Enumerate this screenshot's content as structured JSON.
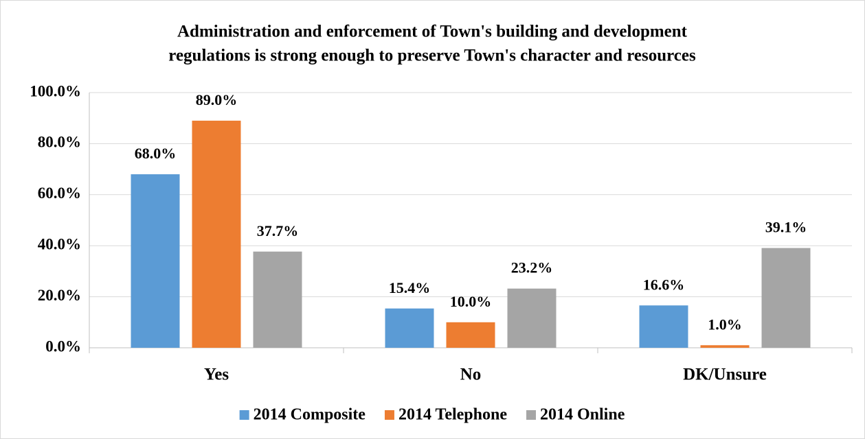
{
  "chart_data": {
    "type": "bar",
    "title": [
      "Administration and enforcement of Town's building and development",
      "regulations is strong enough to preserve Town's character and resources"
    ],
    "categories": [
      "Yes",
      "No",
      "DK/Unsure"
    ],
    "series": [
      {
        "name": "2014 Composite",
        "color": "#5b9bd5",
        "values": [
          68.0,
          15.4,
          16.6
        ],
        "value_labels": [
          "68.0%",
          "15.4%",
          "16.6%"
        ]
      },
      {
        "name": "2014 Telephone",
        "color": "#ed7d31",
        "values": [
          89.0,
          10.0,
          1.0
        ],
        "value_labels": [
          "89.0%",
          "10.0%",
          "1.0%"
        ]
      },
      {
        "name": "2014 Online",
        "color": "#a5a5a5",
        "values": [
          37.7,
          23.2,
          39.1
        ],
        "value_labels": [
          "37.7%",
          "23.2%",
          "39.1%"
        ]
      }
    ],
    "ylim": [
      0,
      100
    ],
    "yticks": [
      {
        "value": 0,
        "label": "0.0%"
      },
      {
        "value": 20,
        "label": "20.0%"
      },
      {
        "value": 40,
        "label": "40.0%"
      },
      {
        "value": 60,
        "label": "60.0%"
      },
      {
        "value": 80,
        "label": "80.0%"
      },
      {
        "value": 100,
        "label": "100.0%"
      }
    ],
    "grid": true,
    "legend": "bottom"
  }
}
